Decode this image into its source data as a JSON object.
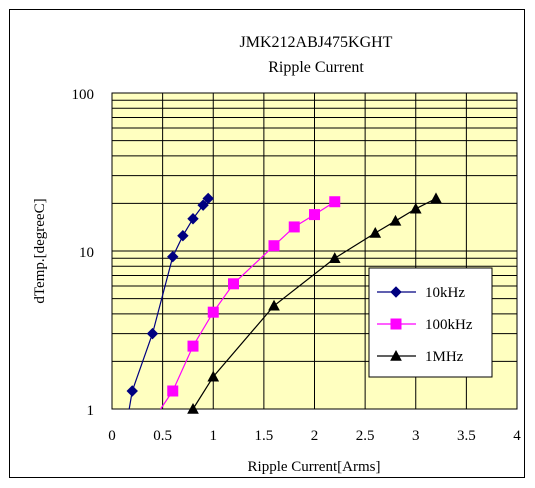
{
  "chart_data": {
    "type": "line",
    "title": "JMK212ABJ475KGHT",
    "subtitle": "Ripple Current",
    "xlabel": "Ripple Current[Arms]",
    "ylabel": "dTemp.[degreeC]",
    "xlim": [
      0,
      4
    ],
    "ylim": [
      1,
      100
    ],
    "yscale": "log",
    "x_ticks": [
      "0",
      "0.5",
      "1",
      "1.5",
      "2",
      "2.5",
      "3",
      "3.5",
      "4"
    ],
    "y_ticks": [
      "1",
      "10",
      "100"
    ],
    "grid": true,
    "legend_position": "lower-right",
    "plot_background": "#FFFFC0",
    "series": [
      {
        "name": "10kHz",
        "color": "#000080",
        "marker": "diamond",
        "x": [
          0.2,
          0.4,
          0.6,
          0.7,
          0.8,
          0.9,
          0.95
        ],
        "y": [
          1.3,
          3.0,
          9.2,
          12.5,
          16.0,
          19.5,
          21.5
        ],
        "line_extension": [
          0.17,
          1.0
        ]
      },
      {
        "name": "100kHz",
        "color": "#FF00FF",
        "marker": "square",
        "x": [
          0.6,
          0.8,
          1.0,
          1.2,
          1.6,
          1.8,
          2.0,
          2.2
        ],
        "y": [
          1.3,
          2.5,
          4.1,
          6.2,
          10.8,
          14.2,
          17.0,
          20.5
        ],
        "line_extension": [
          0.48,
          1.0
        ]
      },
      {
        "name": "1MHz",
        "color": "#000000",
        "marker": "triangle",
        "x": [
          0.8,
          1.0,
          1.6,
          2.2,
          2.6,
          2.8,
          3.0,
          3.2
        ],
        "y": [
          1.0,
          1.6,
          4.5,
          9.0,
          13.0,
          15.5,
          18.5,
          21.5
        ]
      }
    ]
  }
}
